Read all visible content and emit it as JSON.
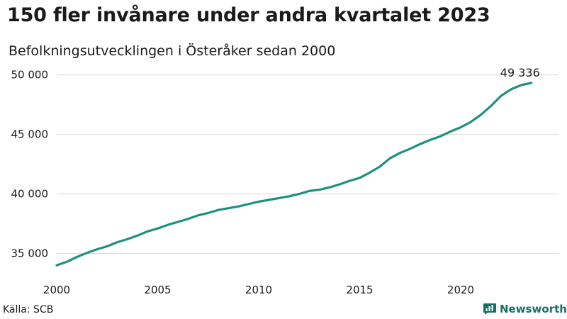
{
  "title": "150 fler invånare under andra kvartalet 2023",
  "subtitle": "Befolkningsutvecklingen i Österåker sedan 2000",
  "source": "Källa: SCB",
  "brand": {
    "name": "Newsworthy",
    "icon": "bar-chart-icon",
    "color": "#1a6f63"
  },
  "chart_data": {
    "type": "line",
    "title": "150 fler invånare under andra kvartalet 2023",
    "subtitle": "Befolkningsutvecklingen i Österåker sedan 2000",
    "xlabel": "",
    "ylabel": "",
    "xlim": [
      2000,
      2024
    ],
    "ylim": [
      33600,
      50400
    ],
    "x_ticks": [
      2000,
      2005,
      2010,
      2015,
      2020
    ],
    "y_ticks": [
      35000,
      40000,
      45000,
      50000
    ],
    "y_tick_labels": [
      "35 000",
      "40 000",
      "45 000",
      "50 000"
    ],
    "grid": "horizontal",
    "line_color": "#1f9080",
    "end_label": "49 336",
    "series": [
      {
        "x": [
          2000.0,
          2000.5,
          2001.0,
          2001.5,
          2002.0,
          2002.5,
          2003.0,
          2003.5,
          2004.0,
          2004.5,
          2005.0,
          2005.5,
          2006.0,
          2006.5,
          2007.0,
          2007.5,
          2008.0,
          2008.5,
          2009.0,
          2009.5,
          2010.0,
          2010.5,
          2011.0,
          2011.5,
          2012.0,
          2012.5,
          2013.0,
          2013.5,
          2014.0,
          2014.5,
          2015.0,
          2015.5,
          2016.0,
          2016.5,
          2017.0,
          2017.5,
          2018.0,
          2018.5,
          2019.0,
          2019.5,
          2020.0,
          2020.5,
          2021.0,
          2021.5,
          2022.0,
          2022.5,
          2023.0,
          2023.5
        ],
        "y": [
          34000,
          34300,
          34700,
          35050,
          35350,
          35600,
          35950,
          36200,
          36500,
          36850,
          37100,
          37400,
          37650,
          37900,
          38200,
          38400,
          38650,
          38800,
          38950,
          39150,
          39350,
          39500,
          39650,
          39800,
          40000,
          40250,
          40350,
          40550,
          40800,
          41100,
          41350,
          41800,
          42300,
          43000,
          43450,
          43800,
          44200,
          44550,
          44850,
          45250,
          45600,
          46050,
          46650,
          47400,
          48250,
          48800,
          49150,
          49336
        ]
      }
    ]
  }
}
